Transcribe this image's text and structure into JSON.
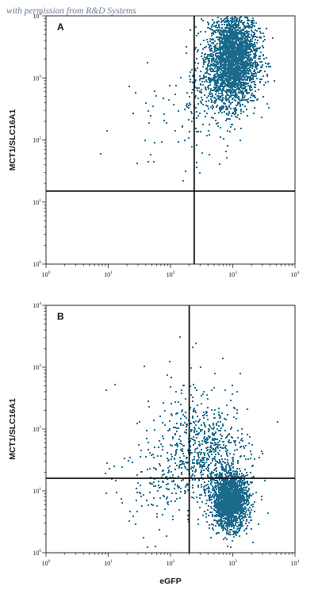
{
  "watermark": "with permission from R&D Systems",
  "colors": {
    "points": "#1b6a8c",
    "gate_lines": "#000000",
    "frame": "#222222",
    "background": "#ffffff"
  },
  "chart_data": [
    {
      "type": "scatter",
      "panel_label": "A",
      "title": "",
      "xlabel": "",
      "ylabel": "MCT1/SLC16A1",
      "xscale": "log",
      "yscale": "log",
      "xlim": [
        1,
        10000
      ],
      "ylim": [
        1,
        10000
      ],
      "x_ticks": [
        {
          "base": "10",
          "exp": "0"
        },
        {
          "base": "10",
          "exp": "1"
        },
        {
          "base": "10",
          "exp": "2"
        },
        {
          "base": "10",
          "exp": "3"
        },
        {
          "base": "10",
          "exp": "4"
        }
      ],
      "y_ticks": [
        {
          "base": "10",
          "exp": "0"
        },
        {
          "base": "10",
          "exp": "1"
        },
        {
          "base": "10",
          "exp": "2"
        },
        {
          "base": "10",
          "exp": "3"
        },
        {
          "base": "10",
          "exp": "4"
        }
      ],
      "quadrant_gate": {
        "x": 240,
        "y": 15
      },
      "grid": false,
      "series": [
        {
          "values_description": "",
          "clusters": [
            {
              "x_log_center": 3.0,
              "y_log_center": 3.35,
              "x_log_sd": 0.2,
              "y_log_sd": 0.38,
              "count": 2600
            },
            {
              "x_log_center": 2.75,
              "y_log_center": 2.85,
              "x_log_sd": 0.25,
              "y_log_sd": 0.3,
              "count": 320
            },
            {
              "x_log_center": 2.1,
              "y_log_center": 2.3,
              "x_log_sd": 0.45,
              "y_log_sd": 0.45,
              "count": 70
            }
          ]
        }
      ]
    },
    {
      "type": "scatter",
      "panel_label": "B",
      "title": "",
      "xlabel": "eGFP",
      "ylabel": "MCT1/SLC16A1",
      "xscale": "log",
      "yscale": "log",
      "xlim": [
        1,
        10000
      ],
      "ylim": [
        1,
        10000
      ],
      "x_ticks": [
        {
          "base": "10",
          "exp": "0"
        },
        {
          "base": "10",
          "exp": "1"
        },
        {
          "base": "10",
          "exp": "2"
        },
        {
          "base": "10",
          "exp": "3"
        },
        {
          "base": "10",
          "exp": "4"
        }
      ],
      "y_ticks": [
        {
          "base": "10",
          "exp": "0"
        },
        {
          "base": "10",
          "exp": "1"
        },
        {
          "base": "10",
          "exp": "2"
        },
        {
          "base": "10",
          "exp": "3"
        },
        {
          "base": "10",
          "exp": "4"
        }
      ],
      "quadrant_gate": {
        "x": 200,
        "y": 16
      },
      "grid": false,
      "series": [
        {
          "clusters": [
            {
              "x_log_center": 2.95,
              "y_log_center": 0.85,
              "x_log_sd": 0.14,
              "y_log_sd": 0.22,
              "count": 2000
            },
            {
              "x_log_center": 2.55,
              "y_log_center": 1.65,
              "x_log_sd": 0.35,
              "y_log_sd": 0.4,
              "count": 650
            },
            {
              "x_log_center": 1.9,
              "y_log_center": 1.2,
              "x_log_sd": 0.4,
              "y_log_sd": 0.45,
              "count": 180
            },
            {
              "x_log_center": 2.3,
              "y_log_center": 2.6,
              "x_log_sd": 0.4,
              "y_log_sd": 0.35,
              "count": 40
            }
          ]
        }
      ]
    }
  ]
}
